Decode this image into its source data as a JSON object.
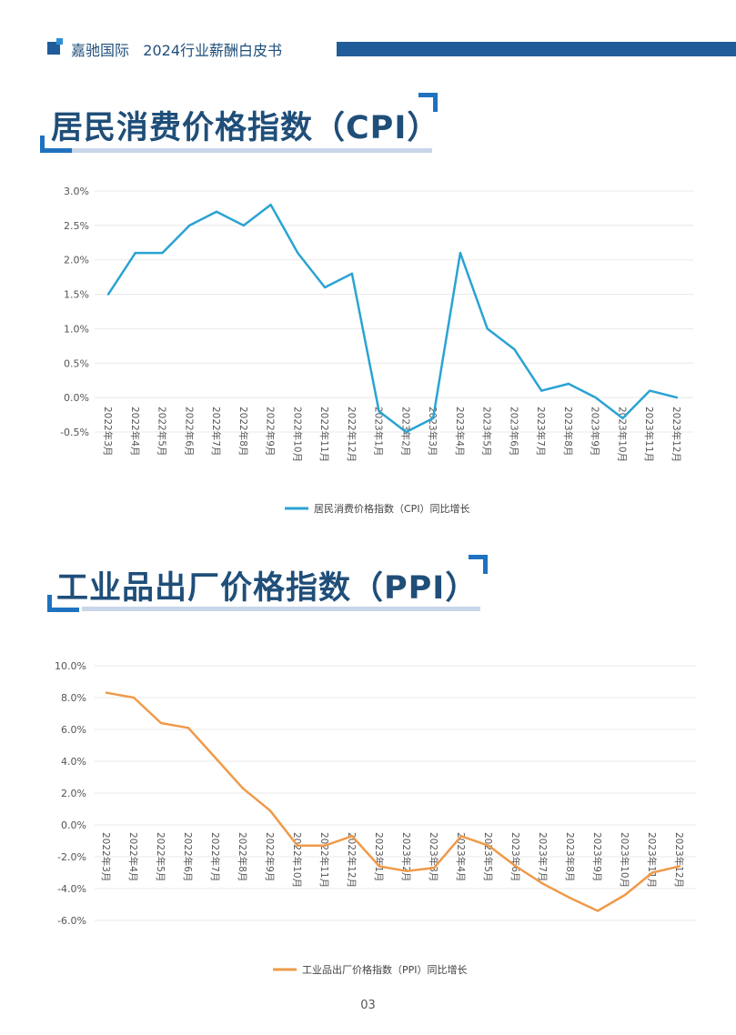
{
  "header": {
    "brand": "嘉驰国际",
    "subtitle": "2024行业薪酬白皮书"
  },
  "sections": {
    "cpi_title": "居民消费价格指数（CPI）",
    "ppi_title": "工业品出厂价格指数（PPI）"
  },
  "page_number": "03",
  "colors": {
    "brand": "#1f5c99",
    "cpi_line": "#2aa3d3",
    "ppi_line": "#ef9a4a"
  },
  "chart_data": [
    {
      "type": "line",
      "title": "居民消费价格指数（CPI）",
      "categories": [
        "2022年3月",
        "2022年4月",
        "2022年5月",
        "2022年6月",
        "2022年7月",
        "2022年8月",
        "2022年9月",
        "2022年10月",
        "2022年11月",
        "2022年12月",
        "2023年1月",
        "2023年2月",
        "2023年3月",
        "2023年4月",
        "2023年5月",
        "2023年6月",
        "2023年7月",
        "2023年8月",
        "2023年9月",
        "2023年10月",
        "2023年11月",
        "2023年12月"
      ],
      "series": [
        {
          "name": "居民消费价格指数（CPI）同比增长",
          "values": [
            1.5,
            2.1,
            2.1,
            2.5,
            2.7,
            2.5,
            2.8,
            2.1,
            1.6,
            1.8,
            -0.2,
            -0.5,
            -0.3,
            2.1,
            1.0,
            0.7,
            0.1,
            0.2,
            0.0,
            -0.3,
            0.1,
            0.0
          ]
        }
      ],
      "yticks": [
        "3.0%",
        "2.5%",
        "2.0%",
        "1.5%",
        "1.0%",
        "0.5%",
        "0.0%",
        "-0.5%"
      ],
      "ylim": [
        -0.5,
        3.0
      ],
      "grid": true,
      "legend": "bottom-center"
    },
    {
      "type": "line",
      "title": "工业品出厂价格指数（PPI）",
      "categories": [
        "2022年3月",
        "2022年4月",
        "2022年5月",
        "2022年6月",
        "2022年7月",
        "2022年8月",
        "2022年9月",
        "2022年10月",
        "2022年11月",
        "2022年12月",
        "2023年1月",
        "2023年2月",
        "2023年3月",
        "2023年4月",
        "2023年5月",
        "2023年6月",
        "2023年7月",
        "2023年8月",
        "2023年9月",
        "2023年10月",
        "2023年11月",
        "2023年12月"
      ],
      "series": [
        {
          "name": "工业品出厂价格指数（PPI）同比增长",
          "values": [
            8.3,
            8.0,
            6.4,
            6.1,
            4.2,
            2.3,
            0.9,
            -1.3,
            -1.3,
            -0.7,
            -2.6,
            -2.9,
            -2.7,
            -0.7,
            -1.3,
            -2.6,
            -3.7,
            -4.6,
            -5.4,
            -4.4,
            -3.0,
            -2.6
          ]
        }
      ],
      "yticks": [
        "10.0%",
        "8.0%",
        "6.0%",
        "4.0%",
        "2.0%",
        "0.0%",
        "-2.0%",
        "-4.0%",
        "-6.0%"
      ],
      "ylim": [
        -6.0,
        10.0
      ],
      "grid": true,
      "legend": "bottom-center"
    }
  ]
}
